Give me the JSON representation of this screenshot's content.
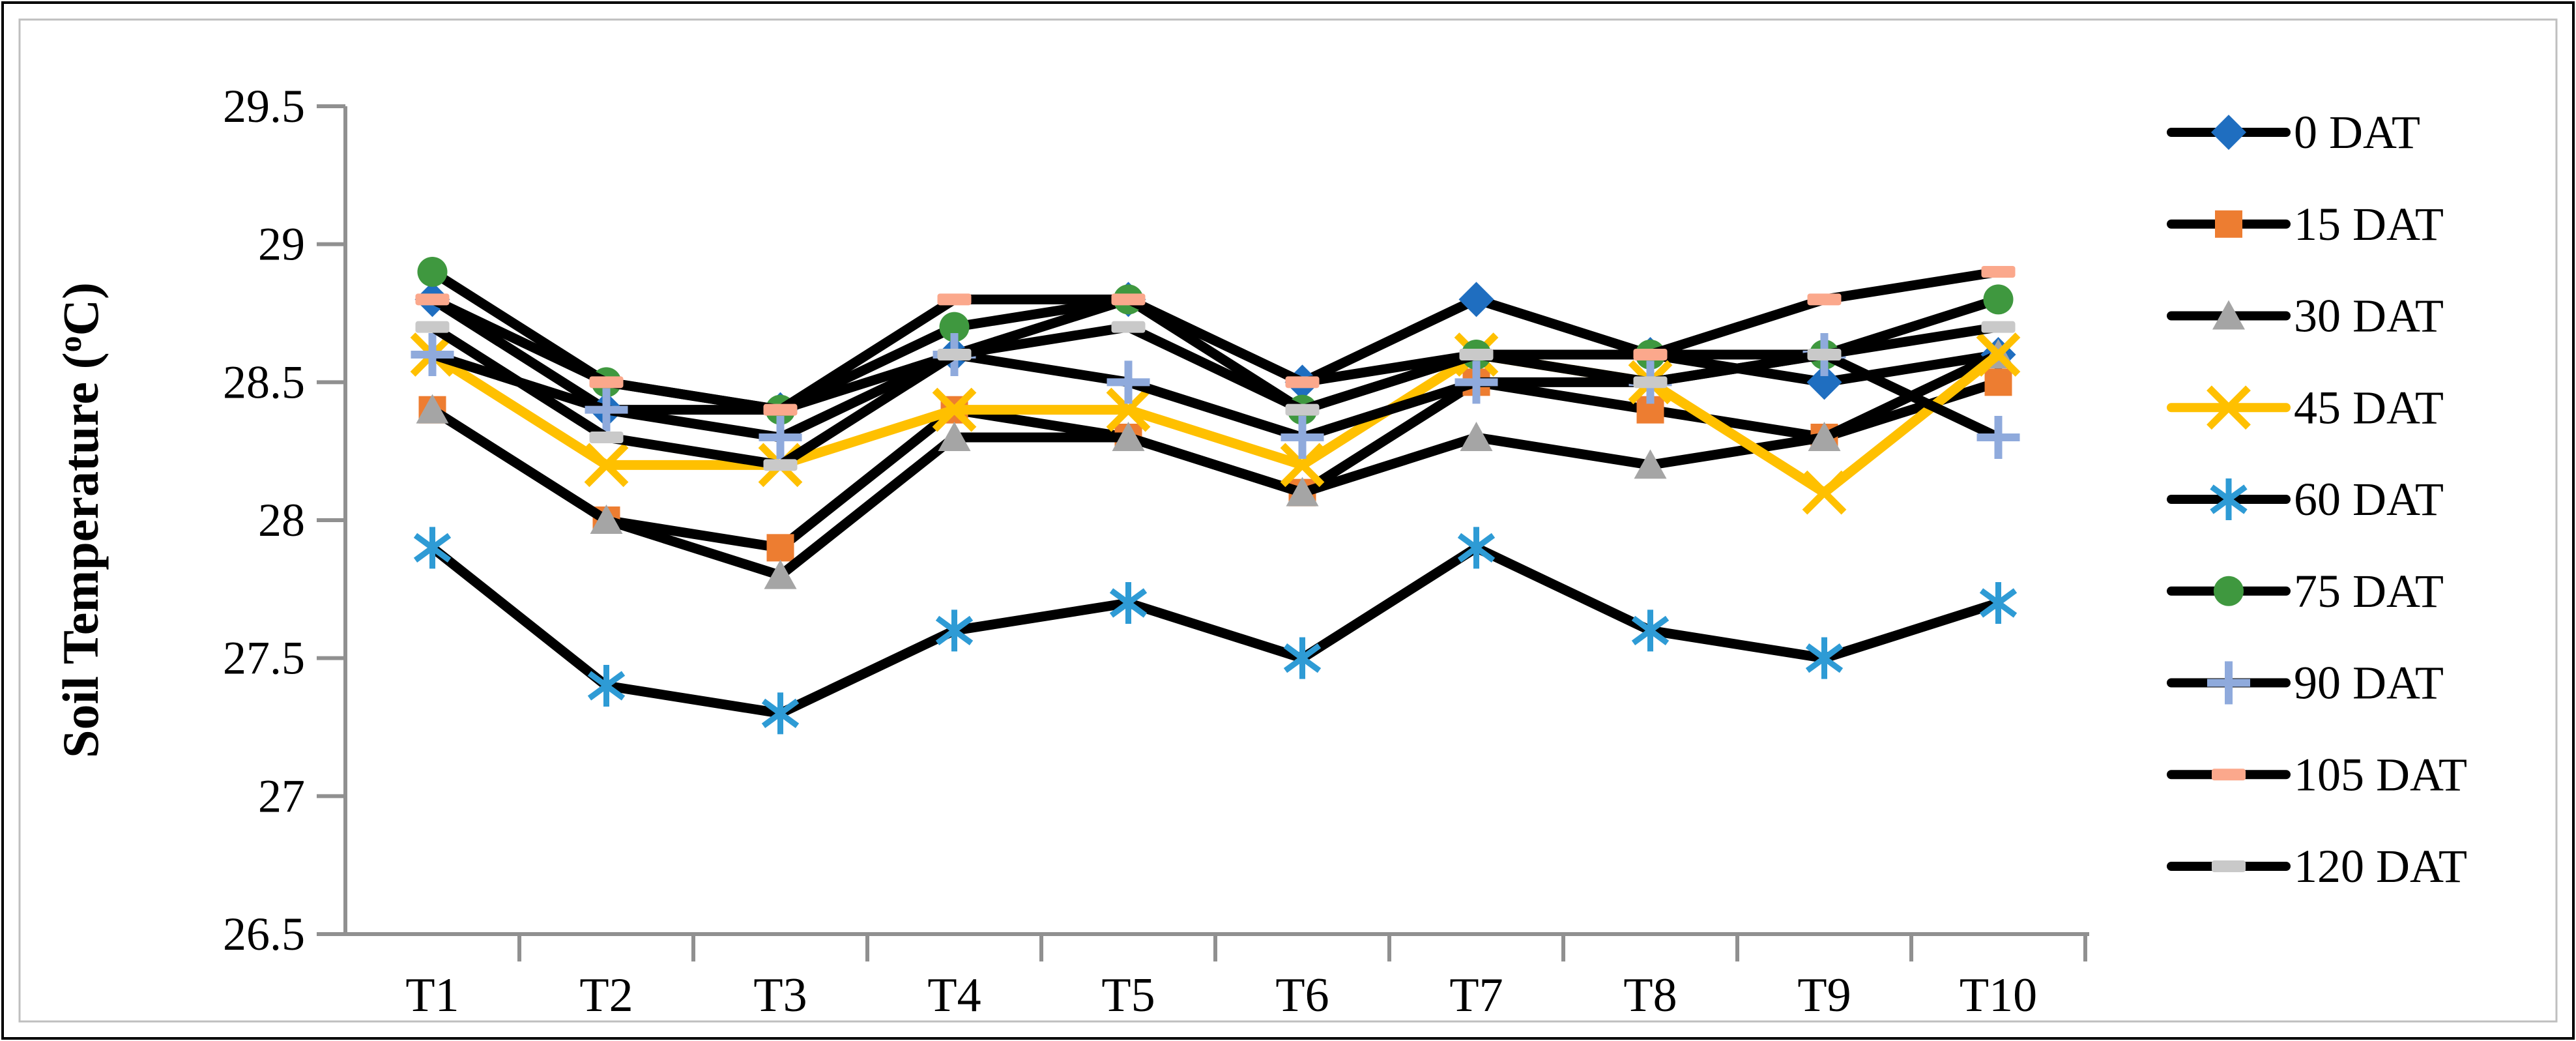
{
  "figure": {
    "background": "#FFFFFF",
    "outer_border_color": "#000000",
    "inner_border_color": "#BFBFBF"
  },
  "axis": {
    "line_color": "#909090",
    "tick_color": "#909090",
    "label_color": "#000000"
  },
  "chart_data": {
    "type": "line",
    "title": "",
    "xlabel": "",
    "ylabel": "Soil Temperature (oC)",
    "ylabel_parts": [
      "Soil Temperature (",
      "o",
      "C)"
    ],
    "ylim": [
      26.5,
      29.5
    ],
    "ytick_step": 0.5,
    "ytick_labels": [
      "26.5",
      "27",
      "27.5",
      "28",
      "28.5",
      "29",
      "29.5"
    ],
    "grid": false,
    "legend_position": "right",
    "categories": [
      "T1",
      "T2",
      "T3",
      "T4",
      "T5",
      "T6",
      "T7",
      "T8",
      "T9",
      "T10"
    ],
    "series": [
      {
        "name": "0 DAT",
        "marker": "diamond",
        "marker_color": "#1F6EC0",
        "line_color": "#000000",
        "values": [
          28.8,
          28.4,
          28.4,
          28.6,
          28.8,
          28.5,
          28.8,
          28.6,
          28.5,
          28.6
        ]
      },
      {
        "name": "15 DAT",
        "marker": "square",
        "marker_color": "#ED7D31",
        "line_color": "#000000",
        "values": [
          28.4,
          28.0,
          27.9,
          28.4,
          28.3,
          28.1,
          28.5,
          28.4,
          28.3,
          28.5
        ]
      },
      {
        "name": "30 DAT",
        "marker": "triangle",
        "marker_color": "#A5A5A5",
        "line_color": "#000000",
        "values": [
          28.4,
          28.0,
          27.8,
          28.3,
          28.3,
          28.1,
          28.3,
          28.2,
          28.3,
          28.6
        ]
      },
      {
        "name": "45 DAT",
        "marker": "x",
        "marker_color": "#FFC000",
        "line_color": "#FFC000",
        "values": [
          28.6,
          28.2,
          28.2,
          28.4,
          28.4,
          28.2,
          28.6,
          28.5,
          28.1,
          28.6
        ]
      },
      {
        "name": "60 DAT",
        "marker": "asterisk",
        "marker_color": "#2E9BD5",
        "line_color": "#000000",
        "values": [
          27.9,
          27.4,
          27.3,
          27.6,
          27.7,
          27.5,
          27.9,
          27.6,
          27.5,
          27.7
        ]
      },
      {
        "name": "75 DAT",
        "marker": "circle",
        "marker_color": "#3F983F",
        "line_color": "#000000",
        "values": [
          28.9,
          28.5,
          28.4,
          28.7,
          28.8,
          28.4,
          28.6,
          28.6,
          28.6,
          28.8
        ]
      },
      {
        "name": "90 DAT",
        "marker": "plus",
        "marker_color": "#8FAADC",
        "line_color": "#000000",
        "values": [
          28.6,
          28.4,
          28.3,
          28.6,
          28.5,
          28.3,
          28.5,
          28.5,
          28.6,
          28.3
        ]
      },
      {
        "name": "105 DAT",
        "marker": "dash",
        "marker_color": "#FBA88C",
        "line_color": "#000000",
        "values": [
          28.8,
          28.5,
          28.4,
          28.8,
          28.8,
          28.5,
          28.6,
          28.6,
          28.8,
          28.9
        ]
      },
      {
        "name": "120 DAT",
        "marker": "dash",
        "marker_color": "#C9C9C9",
        "line_color": "#000000",
        "values": [
          28.7,
          28.3,
          28.2,
          28.6,
          28.7,
          28.4,
          28.6,
          28.5,
          28.6,
          28.7
        ]
      }
    ]
  }
}
